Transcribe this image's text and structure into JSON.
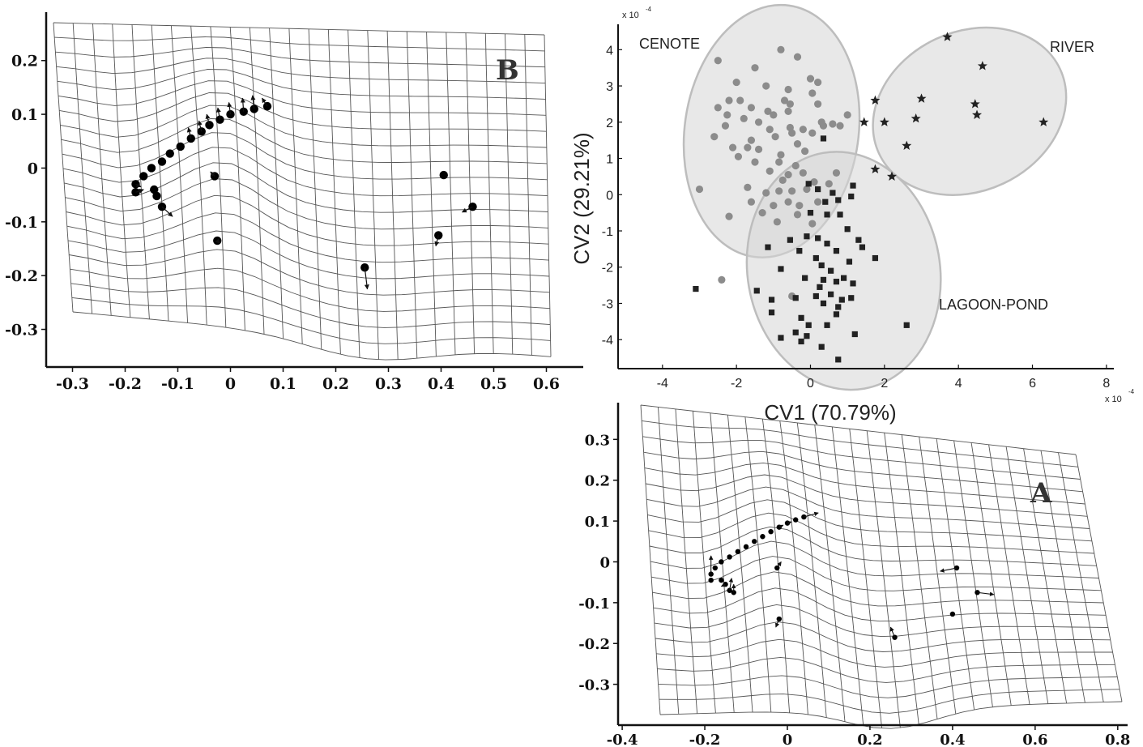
{
  "chart_data": [
    {
      "id": "B",
      "type": "scatter",
      "panel_label": "B",
      "xticks": [
        "-0.3",
        "-0.2",
        "-0.1",
        "0",
        "0.1",
        "0.2",
        "0.3",
        "0.4",
        "0.5",
        "0.6"
      ],
      "yticks": [
        "0.2",
        "0.1",
        "0",
        "-0.1",
        "-0.2",
        "-0.3"
      ],
      "xlim": [
        -0.35,
        0.67
      ],
      "ylim": [
        -0.37,
        0.29
      ],
      "grid": "deformation grid",
      "points": [
        {
          "x": -0.18,
          "y": -0.03,
          "dx": 0.01,
          "dy": -0.005
        },
        {
          "x": -0.18,
          "y": -0.045,
          "dx": 0.015,
          "dy": 0.005
        },
        {
          "x": -0.165,
          "y": -0.015,
          "dx": 0,
          "dy": 0
        },
        {
          "x": -0.15,
          "y": 0.0,
          "dx": 0,
          "dy": 0
        },
        {
          "x": -0.13,
          "y": 0.012,
          "dx": 0,
          "dy": 0
        },
        {
          "x": -0.115,
          "y": 0.027,
          "dx": 0,
          "dy": 0
        },
        {
          "x": -0.095,
          "y": 0.04,
          "dx": 0,
          "dy": 0
        },
        {
          "x": -0.075,
          "y": 0.055,
          "dx": -0.005,
          "dy": 0.02
        },
        {
          "x": -0.055,
          "y": 0.068,
          "dx": -0.005,
          "dy": 0.02
        },
        {
          "x": -0.04,
          "y": 0.08,
          "dx": -0.005,
          "dy": 0.02
        },
        {
          "x": -0.02,
          "y": 0.09,
          "dx": -0.004,
          "dy": 0.022
        },
        {
          "x": 0.0,
          "y": 0.1,
          "dx": -0.003,
          "dy": 0.022
        },
        {
          "x": 0.025,
          "y": 0.105,
          "dx": -0.002,
          "dy": 0.025
        },
        {
          "x": 0.045,
          "y": 0.11,
          "dx": -0.003,
          "dy": 0.025
        },
        {
          "x": 0.07,
          "y": 0.115,
          "dx": -0.01,
          "dy": 0.015
        },
        {
          "x": -0.145,
          "y": -0.04,
          "dx": 0,
          "dy": 0
        },
        {
          "x": -0.14,
          "y": -0.052,
          "dx": 0,
          "dy": 0
        },
        {
          "x": -0.13,
          "y": -0.072,
          "dx": 0.02,
          "dy": -0.018
        },
        {
          "x": -0.03,
          "y": -0.015,
          "dx": -0.008,
          "dy": 0.008
        },
        {
          "x": -0.025,
          "y": -0.135,
          "dx": 0.005,
          "dy": -0.005
        },
        {
          "x": 0.255,
          "y": -0.185,
          "dx": 0.005,
          "dy": -0.04
        },
        {
          "x": 0.395,
          "y": -0.125,
          "dx": -0.005,
          "dy": -0.02
        },
        {
          "x": 0.405,
          "y": -0.013,
          "dx": 0,
          "dy": 0
        },
        {
          "x": 0.46,
          "y": -0.072,
          "dx": -0.02,
          "dy": -0.01
        }
      ]
    },
    {
      "id": "CV",
      "type": "scatter",
      "xlabel": "CV1 (70.79%)",
      "ylabel": "CV2 (29.21%)",
      "x_multiplier": "x 10",
      "y_multiplier": "x 10",
      "exponent": "-4",
      "xticks": [
        "-4",
        "-2",
        "0",
        "2",
        "4",
        "6",
        "8"
      ],
      "yticks": [
        "4",
        "3",
        "2",
        "1",
        "0",
        "-1",
        "-2",
        "-3",
        "-4"
      ],
      "xlim": [
        -5.2,
        8.2
      ],
      "ylim": [
        -4.8,
        4.7
      ],
      "labels": {
        "cenote": "CENOTE",
        "river": "RIVER",
        "lagoon": "LAGOON-POND"
      },
      "ellipses": [
        {
          "group": "cenote",
          "cx": -1.05,
          "cy": 1.75,
          "rx": 2.35,
          "ry": 3.5,
          "rot": 8
        },
        {
          "group": "river",
          "cx": 4.3,
          "cy": 2.3,
          "rx": 2.7,
          "ry": 2.2,
          "rot": -25
        },
        {
          "group": "lagoon",
          "cx": 0.9,
          "cy": -2.1,
          "rx": 2.6,
          "ry": 3.3,
          "rot": -10
        }
      ],
      "series": [
        {
          "name": "CENOTE",
          "marker": "circle",
          "color": "#8c8c8c",
          "points": [
            [
              -2.5,
              3.7
            ],
            [
              -1.5,
              3.5
            ],
            [
              -0.8,
              4.0
            ],
            [
              -0.35,
              3.8
            ],
            [
              0.0,
              3.2
            ],
            [
              0.2,
              3.1
            ],
            [
              -2.0,
              3.1
            ],
            [
              -1.2,
              3.0
            ],
            [
              -0.6,
              2.9
            ],
            [
              0.05,
              2.8
            ],
            [
              -2.2,
              2.6
            ],
            [
              -1.9,
              2.6
            ],
            [
              -1.6,
              2.4
            ],
            [
              -1.15,
              2.3
            ],
            [
              -0.7,
              2.6
            ],
            [
              -0.55,
              2.5
            ],
            [
              -2.5,
              2.4
            ],
            [
              -2.25,
              2.2
            ],
            [
              -1.8,
              2.1
            ],
            [
              -1.4,
              2.0
            ],
            [
              -1.0,
              2.2
            ],
            [
              -0.6,
              2.3
            ],
            [
              0.2,
              2.5
            ],
            [
              0.3,
              2.0
            ],
            [
              0.6,
              1.95
            ],
            [
              0.8,
              1.9
            ],
            [
              -2.3,
              1.9
            ],
            [
              -1.1,
              1.8
            ],
            [
              -0.55,
              1.85
            ],
            [
              -0.2,
              1.8
            ],
            [
              0.05,
              1.7
            ],
            [
              0.35,
              1.9
            ],
            [
              1.0,
              2.2
            ],
            [
              -2.6,
              1.6
            ],
            [
              -1.6,
              1.5
            ],
            [
              -0.95,
              1.6
            ],
            [
              -0.5,
              1.7
            ],
            [
              -0.35,
              1.4
            ],
            [
              -2.1,
              1.3
            ],
            [
              -1.7,
              1.3
            ],
            [
              -1.4,
              1.25
            ],
            [
              -0.8,
              1.1
            ],
            [
              -0.15,
              1.2
            ],
            [
              -1.95,
              1.05
            ],
            [
              -1.5,
              0.9
            ],
            [
              -0.85,
              0.9
            ],
            [
              -0.4,
              0.8
            ],
            [
              -1.1,
              0.65
            ],
            [
              -0.6,
              0.55
            ],
            [
              -0.2,
              0.6
            ],
            [
              -0.75,
              0.4
            ],
            [
              0.1,
              0.35
            ],
            [
              -3.0,
              0.15
            ],
            [
              -1.7,
              0.2
            ],
            [
              -1.2,
              0.05
            ],
            [
              -0.85,
              0.1
            ],
            [
              -0.5,
              0.1
            ],
            [
              -0.1,
              0.15
            ],
            [
              -1.6,
              -0.2
            ],
            [
              -1.0,
              -0.3
            ],
            [
              -0.6,
              -0.2
            ],
            [
              -0.3,
              -0.3
            ],
            [
              -2.2,
              -0.6
            ],
            [
              -1.3,
              -0.5
            ],
            [
              -0.9,
              -0.75
            ],
            [
              -0.35,
              -0.55
            ],
            [
              0.05,
              -0.8
            ],
            [
              -2.4,
              -2.35
            ],
            [
              -0.5,
              -2.8
            ],
            [
              0.2,
              -0.2
            ],
            [
              0.5,
              0.3
            ],
            [
              0.7,
              0.6
            ]
          ]
        },
        {
          "name": "RIVER",
          "marker": "star",
          "color": "#222222",
          "points": [
            [
              3.7,
              4.35
            ],
            [
              4.65,
              3.55
            ],
            [
              1.75,
              2.6
            ],
            [
              3.0,
              2.65
            ],
            [
              4.45,
              2.5
            ],
            [
              1.45,
              2.0
            ],
            [
              2.0,
              2.0
            ],
            [
              2.85,
              2.1
            ],
            [
              4.5,
              2.2
            ],
            [
              6.3,
              2.0
            ],
            [
              2.6,
              1.35
            ],
            [
              1.75,
              0.7
            ],
            [
              2.2,
              0.5
            ]
          ]
        },
        {
          "name": "LAGOON-POND",
          "marker": "square",
          "color": "#222222",
          "points": [
            [
              0.35,
              1.55
            ],
            [
              -0.05,
              0.3
            ],
            [
              0.2,
              0.15
            ],
            [
              1.15,
              0.25
            ],
            [
              0.6,
              0.05
            ],
            [
              0.4,
              -0.2
            ],
            [
              0.75,
              -0.15
            ],
            [
              1.1,
              -0.05
            ],
            [
              0.0,
              -0.5
            ],
            [
              0.45,
              -0.55
            ],
            [
              0.8,
              -0.55
            ],
            [
              -0.55,
              -1.25
            ],
            [
              -0.1,
              -1.15
            ],
            [
              0.2,
              -1.2
            ],
            [
              0.45,
              -1.35
            ],
            [
              1.0,
              -0.95
            ],
            [
              1.3,
              -1.25
            ],
            [
              -1.15,
              -1.45
            ],
            [
              -0.3,
              -1.55
            ],
            [
              0.15,
              -1.75
            ],
            [
              0.7,
              -1.55
            ],
            [
              1.05,
              -1.85
            ],
            [
              1.4,
              -1.45
            ],
            [
              -0.8,
              -2.05
            ],
            [
              0.3,
              -1.95
            ],
            [
              0.55,
              -2.1
            ],
            [
              1.75,
              -1.75
            ],
            [
              -0.15,
              -2.3
            ],
            [
              0.35,
              -2.35
            ],
            [
              0.9,
              -2.3
            ],
            [
              1.15,
              -2.45
            ],
            [
              -3.1,
              -2.6
            ],
            [
              -1.45,
              -2.65
            ],
            [
              0.25,
              -2.55
            ],
            [
              0.7,
              -2.4
            ],
            [
              -0.4,
              -2.85
            ],
            [
              0.15,
              -2.8
            ],
            [
              0.55,
              -2.75
            ],
            [
              0.85,
              -2.9
            ],
            [
              1.1,
              -2.85
            ],
            [
              -1.05,
              -2.9
            ],
            [
              0.35,
              -3.0
            ],
            [
              0.75,
              -3.1
            ],
            [
              -1.05,
              -3.25
            ],
            [
              -0.25,
              -3.4
            ],
            [
              0.7,
              -3.3
            ],
            [
              -0.05,
              -3.6
            ],
            [
              0.45,
              -3.6
            ],
            [
              -0.4,
              -3.8
            ],
            [
              -0.1,
              -3.9
            ],
            [
              1.2,
              -3.85
            ],
            [
              2.6,
              -3.6
            ],
            [
              -0.8,
              -3.95
            ],
            [
              -0.25,
              -4.05
            ],
            [
              0.3,
              -4.2
            ],
            [
              0.75,
              -4.55
            ]
          ]
        }
      ]
    },
    {
      "id": "A",
      "type": "scatter",
      "panel_label": "A",
      "xticks": [
        "-0.4",
        "-0.2",
        "0",
        "0.2",
        "0.4",
        "0.6",
        "0.8"
      ],
      "yticks": [
        "0.3",
        "0.2",
        "0.1",
        "0",
        "-0.1",
        "-0.2",
        "-0.3"
      ],
      "xlim": [
        -0.41,
        0.82
      ],
      "ylim": [
        -0.4,
        0.39
      ],
      "grid": "deformation grid",
      "points": [
        {
          "x": -0.185,
          "y": -0.03,
          "dx": 0,
          "dy": 0.045
        },
        {
          "x": -0.185,
          "y": -0.045,
          "dx": 0,
          "dy": 0
        },
        {
          "x": -0.175,
          "y": -0.015,
          "dx": 0,
          "dy": 0
        },
        {
          "x": -0.16,
          "y": 0.0,
          "dx": 0,
          "dy": 0
        },
        {
          "x": -0.14,
          "y": 0.012,
          "dx": 0,
          "dy": 0
        },
        {
          "x": -0.12,
          "y": 0.025,
          "dx": 0,
          "dy": 0
        },
        {
          "x": -0.1,
          "y": 0.037,
          "dx": 0,
          "dy": 0
        },
        {
          "x": -0.08,
          "y": 0.05,
          "dx": 0,
          "dy": 0
        },
        {
          "x": -0.06,
          "y": 0.062,
          "dx": 0,
          "dy": 0
        },
        {
          "x": -0.04,
          "y": 0.074,
          "dx": 0,
          "dy": 0
        },
        {
          "x": -0.02,
          "y": 0.085,
          "dx": 0.01,
          "dy": 0.005
        },
        {
          "x": 0.0,
          "y": 0.095,
          "dx": 0.01,
          "dy": 0.003
        },
        {
          "x": 0.02,
          "y": 0.103,
          "dx": 0,
          "dy": 0
        },
        {
          "x": 0.04,
          "y": 0.11,
          "dx": 0.035,
          "dy": 0.01
        },
        {
          "x": -0.16,
          "y": -0.045,
          "dx": 0,
          "dy": 0
        },
        {
          "x": -0.15,
          "y": -0.055,
          "dx": -0.01,
          "dy": -0.005
        },
        {
          "x": -0.13,
          "y": -0.075,
          "dx": 0,
          "dy": 0.02
        },
        {
          "x": -0.14,
          "y": -0.07,
          "dx": 0.005,
          "dy": 0.03
        },
        {
          "x": -0.025,
          "y": -0.015,
          "dx": 0.01,
          "dy": 0.015
        },
        {
          "x": -0.02,
          "y": -0.14,
          "dx": -0.008,
          "dy": -0.02
        },
        {
          "x": 0.26,
          "y": -0.185,
          "dx": -0.01,
          "dy": 0.025
        },
        {
          "x": 0.41,
          "y": -0.015,
          "dx": -0.04,
          "dy": -0.008
        },
        {
          "x": 0.4,
          "y": -0.128,
          "dx": 0,
          "dy": 0
        },
        {
          "x": 0.46,
          "y": -0.075,
          "dx": 0.04,
          "dy": -0.005
        }
      ]
    }
  ]
}
